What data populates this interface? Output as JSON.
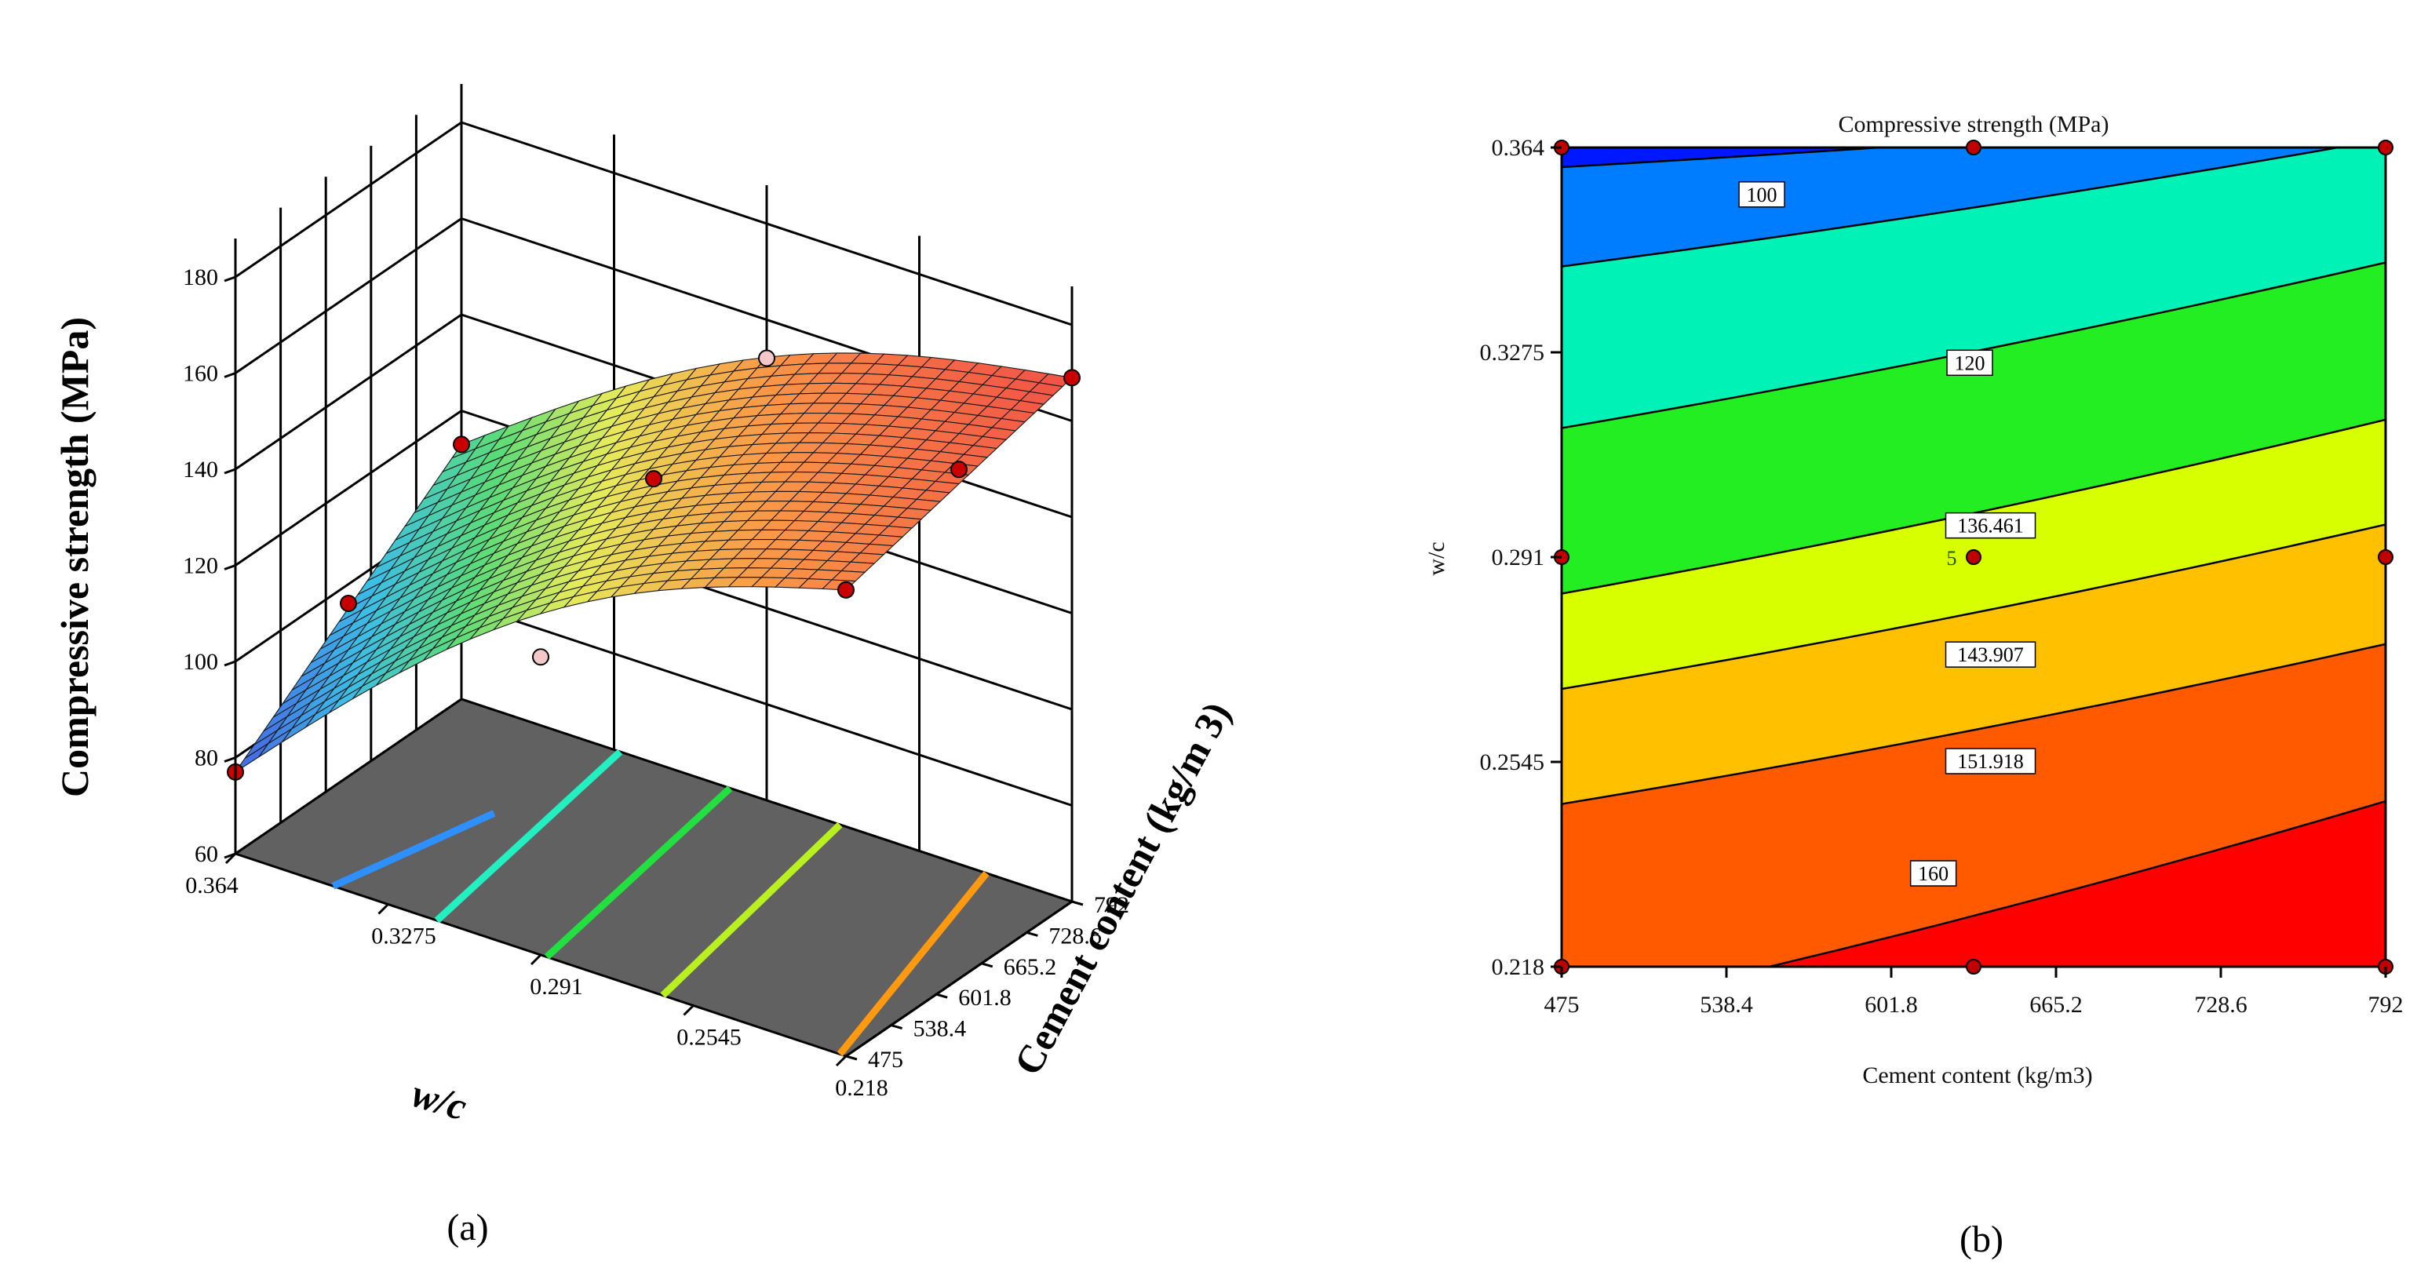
{
  "panels": {
    "a": {
      "caption": "(a)"
    },
    "b": {
      "caption": "(b)"
    }
  },
  "chart_data": [
    {
      "type": "surface",
      "panel": "(a)",
      "zlabel": "Compressive strength (MPa)",
      "xlabel": "w/c",
      "ylabel": "Cement content (kg/m 3)",
      "z_ticks": [
        "60",
        "80",
        "100",
        "120",
        "140",
        "160",
        "180"
      ],
      "x_ticks": [
        "0.364",
        "0.3275",
        "0.291",
        "0.2545",
        "0.218"
      ],
      "y_ticks": [
        "475",
        "538.4",
        "601.8",
        "665.2",
        "728.6",
        "792"
      ],
      "zlim": [
        60,
        180
      ],
      "xlim": [
        0.218,
        0.364
      ],
      "ylim": [
        475,
        792
      ],
      "surface_corners": [
        {
          "wc": 0.364,
          "cement": 475,
          "strength": 77
        },
        {
          "wc": 0.364,
          "cement": 792,
          "strength": 113
        },
        {
          "wc": 0.218,
          "cement": 475,
          "strength": 157
        },
        {
          "wc": 0.218,
          "cement": 792,
          "strength": 169
        }
      ],
      "design_points": [
        {
          "wc": 0.364,
          "cement": 475,
          "strength": 77
        },
        {
          "wc": 0.364,
          "cement": 792,
          "strength": 113
        },
        {
          "wc": 0.218,
          "cement": 475,
          "strength": 157
        },
        {
          "wc": 0.218,
          "cement": 792,
          "strength": 169
        },
        {
          "wc": 0.291,
          "cement": 633.5,
          "strength": 143
        },
        {
          "wc": 0.364,
          "cement": 633.5,
          "strength": 96
        },
        {
          "wc": 0.218,
          "cement": 633.5,
          "strength": 166
        },
        {
          "wc": 0.291,
          "cement": 475,
          "strength": 122
        },
        {
          "wc": 0.291,
          "cement": 792,
          "strength": 152
        }
      ],
      "floor_contour_colors": [
        "#2e8fff",
        "#22f0c0",
        "#22e040",
        "#b8f020",
        "#ff9a10"
      ],
      "floor_color": "#616161"
    },
    {
      "type": "contour",
      "panel": "(b)",
      "title": "Compressive strength (MPa)",
      "xlabel": "Cement content (kg/m3)",
      "ylabel": "w/c",
      "x_ticks": [
        "475",
        "538.4",
        "601.8",
        "665.2",
        "728.6",
        "792"
      ],
      "y_ticks": [
        "0.218",
        "0.2545",
        "0.291",
        "0.3275",
        "0.364"
      ],
      "xlim": [
        475,
        792
      ],
      "ylim": [
        0.218,
        0.364
      ],
      "bands": [
        {
          "color": "#ff0000",
          "range": [
            160,
            180
          ]
        },
        {
          "color": "#ff5a00",
          "range": [
            151.918,
            160
          ]
        },
        {
          "color": "#ffc000",
          "range": [
            143.907,
            151.918
          ]
        },
        {
          "color": "#d8ff00",
          "range": [
            136.461,
            143.907
          ]
        },
        {
          "color": "#22ee22",
          "range": [
            120,
            136.461
          ]
        },
        {
          "color": "#00f2b6",
          "range": [
            100,
            120
          ]
        },
        {
          "color": "#007cff",
          "range": [
            85,
            100
          ]
        },
        {
          "color": "#0018ff",
          "range": [
            60,
            85
          ]
        }
      ],
      "contour_labels": [
        "100",
        "120",
        "136.461",
        "143.907",
        "151.918",
        "160"
      ],
      "center_point": {
        "cement": 633.5,
        "wc": 0.291,
        "label": "5"
      },
      "design_points": [
        {
          "cement": 475,
          "wc": 0.364
        },
        {
          "cement": 633.5,
          "wc": 0.364
        },
        {
          "cement": 792,
          "wc": 0.364
        },
        {
          "cement": 475,
          "wc": 0.291
        },
        {
          "cement": 792,
          "wc": 0.291
        },
        {
          "cement": 475,
          "wc": 0.218
        },
        {
          "cement": 633.5,
          "wc": 0.218
        },
        {
          "cement": 792,
          "wc": 0.218
        }
      ]
    }
  ]
}
